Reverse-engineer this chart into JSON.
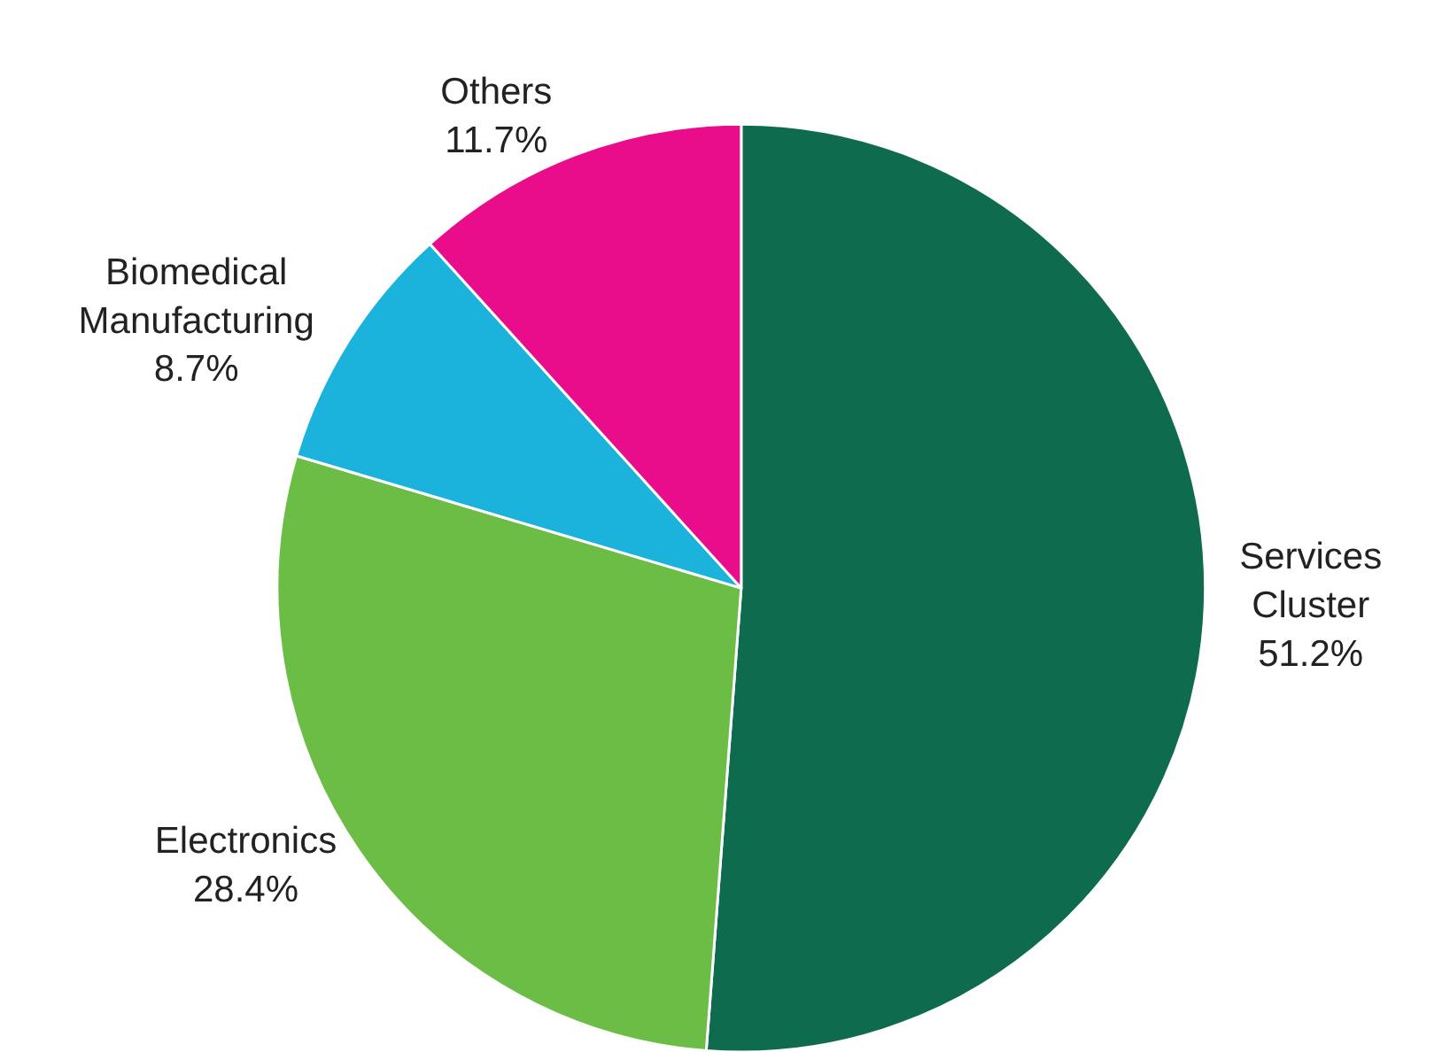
{
  "chart_data": {
    "type": "pie",
    "categories": [
      "Services Cluster",
      "Electronics",
      "Biomedical Manufacturing",
      "Others"
    ],
    "values": [
      51.2,
      28.4,
      8.7,
      11.7
    ],
    "value_labels": [
      "51.2%",
      "28.4%",
      "8.7%",
      "11.7%"
    ],
    "colors": [
      "#0e6b4e",
      "#6bbd45",
      "#1bb2dc",
      "#e90d8b"
    ]
  }
}
